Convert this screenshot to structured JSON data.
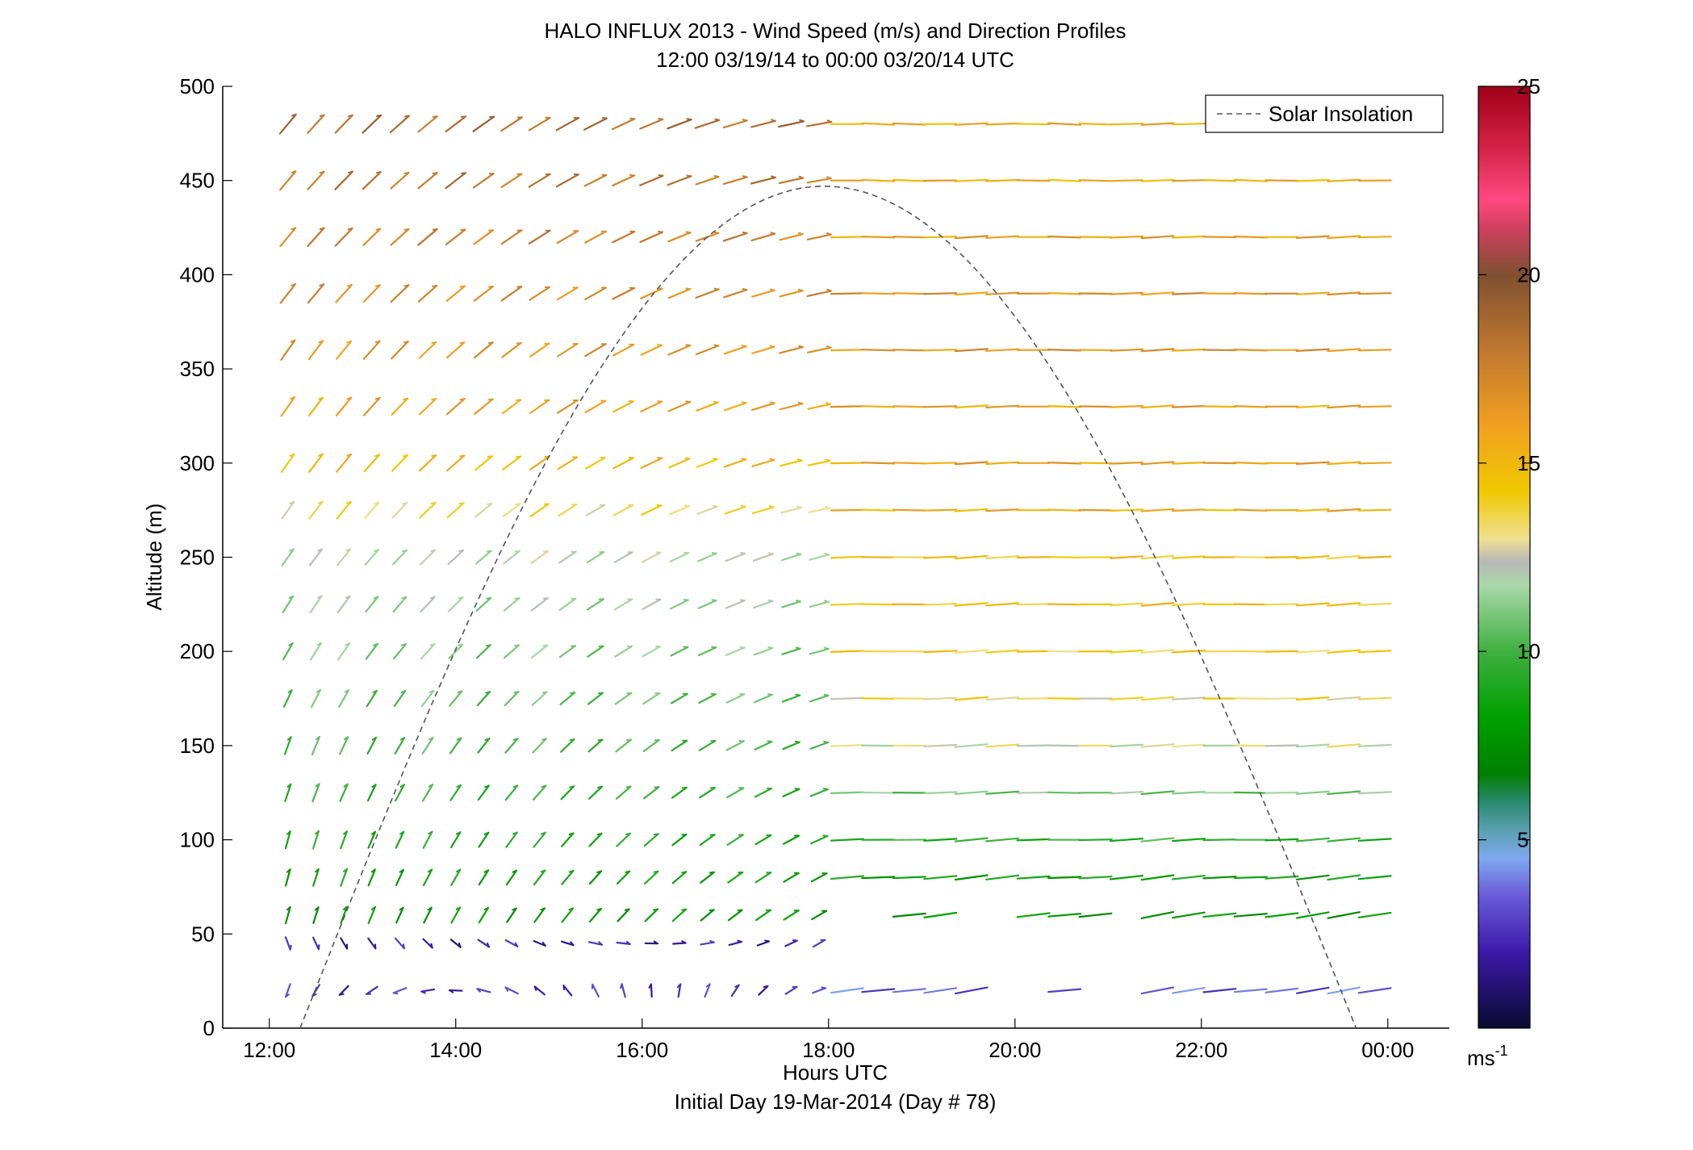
{
  "chart_data": {
    "type": "wind-barbs",
    "title": "HALO INFLUX 2013 - Wind Speed (m/s) and Direction Profiles",
    "subtitle": "12:00 03/19/14 to 00:00 03/20/14  UTC",
    "xlabel": "Hours UTC",
    "xlabel2": "Initial Day 19-Mar-2014 (Day # 78)",
    "ylabel": "Altitude (m)",
    "xlim": [
      11.5,
      24.66
    ],
    "ylim": [
      0,
      500
    ],
    "xticks": [
      12,
      14,
      16,
      18,
      20,
      22,
      24
    ],
    "xtick_labels": [
      "12:00",
      "14:00",
      "16:00",
      "18:00",
      "20:00",
      "22:00",
      "00:00"
    ],
    "yticks": [
      0,
      50,
      100,
      150,
      200,
      250,
      300,
      350,
      400,
      450,
      500
    ],
    "ytick_labels": [
      "0",
      "50",
      "100",
      "150",
      "200",
      "250",
      "300",
      "350",
      "400",
      "450",
      "500"
    ],
    "colorbar": {
      "range": [
        0,
        25
      ],
      "ticks": [
        5,
        10,
        15,
        20,
        25
      ],
      "tick_labels": [
        "5",
        "10",
        "15",
        "20",
        "25"
      ],
      "unit_label": "ms",
      "unit_exponent": "-1"
    },
    "legend": {
      "position": "top-right",
      "entries": [
        "Solar Insolation"
      ]
    },
    "series": [
      {
        "name": "Solar Insolation",
        "style": "dashed",
        "color": "#555555",
        "x_start": 12.33,
        "x_peak": 17.95,
        "x_end": 23.66,
        "peak_altitude": 447
      }
    ],
    "wind_field": {
      "altitudes": [
        20,
        45,
        60,
        80,
        100,
        125,
        150,
        175,
        200,
        225,
        250,
        275,
        300,
        330,
        360,
        390,
        420,
        450,
        480
      ],
      "times_day": {
        "start": 12.2,
        "end": 17.9,
        "step": 0.3
      },
      "times_night": {
        "start": 18.2,
        "end": 23.95,
        "step": 0.333
      },
      "gaps_at_50m": [
        [
          18.2,
          18.8
        ],
        [
          19.5,
          20.0
        ],
        [
          21.0,
          21.5
        ]
      ],
      "gaps_at_20m": [
        [
          19.7,
          20.2
        ],
        [
          20.6,
          21.2
        ]
      ],
      "direction_profiles": [
        {
          "altitude": 20,
          "dir_day_start": 20,
          "dir_day_end": 250,
          "speed_day": 2.5,
          "dir_night": 262,
          "speed_night": 3.5
        },
        {
          "altitude": 45,
          "dir_day_start": 340,
          "dir_day_end": 240,
          "speed_day": 2.0,
          "dir_night": 262,
          "speed_night": 3.0
        },
        {
          "altitude": 60,
          "dir_day_start": 195,
          "dir_day_end": 240,
          "speed_day": 8.0,
          "dir_night": 262,
          "speed_night": 8.0
        },
        {
          "altitude": 80,
          "dir_day_start": 195,
          "dir_day_end": 242,
          "speed_day": 8.5,
          "dir_night": 265,
          "speed_night": 8.5
        },
        {
          "altitude": 100,
          "dir_day_start": 195,
          "dir_day_end": 245,
          "speed_day": 9.0,
          "dir_night": 267,
          "speed_night": 9.5
        },
        {
          "altitude": 125,
          "dir_day_start": 198,
          "dir_day_end": 248,
          "speed_day": 9.5,
          "dir_night": 268,
          "speed_night": 11.0
        },
        {
          "altitude": 150,
          "dir_day_start": 200,
          "dir_day_end": 250,
          "speed_day": 10.0,
          "dir_night": 268,
          "speed_night": 12.5
        },
        {
          "altitude": 175,
          "dir_day_start": 205,
          "dir_day_end": 252,
          "speed_day": 10.5,
          "dir_night": 268,
          "speed_night": 13.5
        },
        {
          "altitude": 200,
          "dir_day_start": 210,
          "dir_day_end": 255,
          "speed_day": 11.0,
          "dir_night": 268,
          "speed_night": 14.0
        },
        {
          "altitude": 225,
          "dir_day_start": 212,
          "dir_day_end": 255,
          "speed_day": 11.5,
          "dir_night": 268,
          "speed_night": 14.5
        },
        {
          "altitude": 250,
          "dir_day_start": 215,
          "dir_day_end": 255,
          "speed_day": 12.0,
          "dir_night": 268,
          "speed_night": 14.5
        },
        {
          "altitude": 275,
          "dir_day_start": 215,
          "dir_day_end": 258,
          "speed_day": 13.5,
          "dir_night": 269,
          "speed_night": 15.5
        },
        {
          "altitude": 300,
          "dir_day_start": 215,
          "dir_day_end": 258,
          "speed_day": 15.0,
          "dir_night": 269,
          "speed_night": 16.0
        },
        {
          "altitude": 330,
          "dir_day_start": 215,
          "dir_day_end": 258,
          "speed_day": 16.0,
          "dir_night": 269,
          "speed_night": 16.0
        },
        {
          "altitude": 360,
          "dir_day_start": 215,
          "dir_day_end": 258,
          "speed_day": 16.5,
          "dir_night": 269,
          "speed_night": 16.5
        },
        {
          "altitude": 390,
          "dir_day_start": 218,
          "dir_day_end": 258,
          "speed_day": 17.0,
          "dir_night": 269,
          "speed_night": 16.5
        },
        {
          "altitude": 420,
          "dir_day_start": 220,
          "dir_day_end": 258,
          "speed_day": 17.5,
          "dir_night": 269,
          "speed_night": 16.0
        },
        {
          "altitude": 450,
          "dir_day_start": 220,
          "dir_day_end": 260,
          "speed_day": 18.0,
          "dir_night": 270,
          "speed_night": 15.5
        },
        {
          "altitude": 480,
          "dir_day_start": 220,
          "dir_day_end": 260,
          "speed_day": 18.5,
          "dir_night": 270,
          "speed_night": 15.5
        }
      ]
    }
  }
}
